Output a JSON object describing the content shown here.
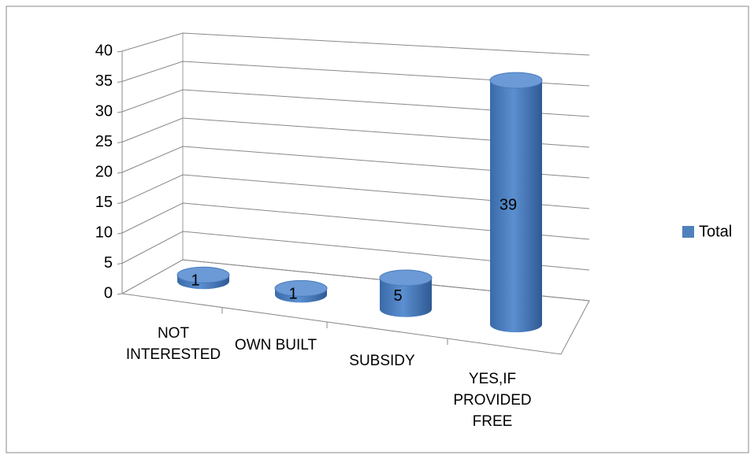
{
  "chart_data": {
    "type": "bar3d",
    "categories": [
      "NOT INTERESTED",
      "OWN BUILT",
      "SUBSIDY",
      "YES,IF PROVIDED FREE"
    ],
    "series": [
      {
        "name": "Total",
        "color": "#4f81bd",
        "values": [
          1,
          1,
          5,
          39
        ]
      }
    ],
    "ylim": [
      0,
      40
    ],
    "yticks": [
      0,
      5,
      10,
      15,
      20,
      25,
      30,
      35,
      40
    ],
    "grid": true,
    "legend": "right"
  }
}
